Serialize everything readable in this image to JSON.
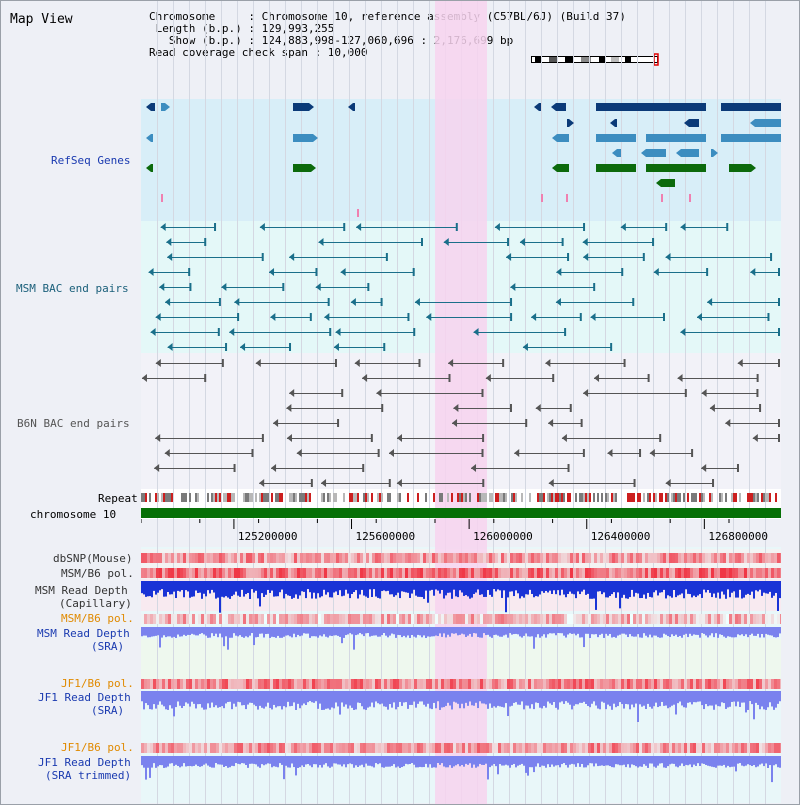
{
  "view": {
    "title": "Map View"
  },
  "header": {
    "line1": "Chromosome     : Chromosome 10, reference assembly (C57BL/6J) (Build 37)",
    "line2": " Length (b.p.) : 129,993,255",
    "line3": "   Show (b.p.) : 124,883,998-127,060,696 : 2,176,699 bp",
    "line4": "Read coverage check span : 10,000"
  },
  "colors": {
    "gene_navy": "#0b3a78",
    "gene_mid": "#3c8dc0",
    "gene_green": "#0c6a0c",
    "refseq_bg": "#d8eef8",
    "msm_bg": "#e4f8f8",
    "b6n_bg": "#f2f2f8",
    "msm_line": "#1a6f8a",
    "b6n_line": "#555555",
    "highlight": "#f7d3ee",
    "chrom_bar": "#067006",
    "depth_blue": "#1a33d6",
    "depth_light": "#7a82ee",
    "snp_red": "#e84a50",
    "label_blue": "#1a3ab0",
    "label_orange": "#e08a00",
    "label_teal": "#1a5f7a"
  },
  "tracks": {
    "refseq": "RefSeq Genes",
    "msm_bac": "MSM BAC end pairs",
    "b6n_bac": "B6N BAC end pairs",
    "repeat": "Repeat",
    "chromosome": "chromosome 10",
    "dbsnp": "dbSNP(Mouse)",
    "msm_b6_pol": "MSM/B6 pol.",
    "msm_depth_cap": "MSM Read Depth",
    "msm_depth_cap_sub": "(Capillary)",
    "msm_b6_pol2": "MSM/B6 pol.",
    "msm_depth_sra": "MSM Read Depth",
    "msm_depth_sra_sub": "(SRA)",
    "jf1_b6_pol": "JF1/B6 pol.",
    "jf1_depth_sra": "JF1 Read Depth",
    "jf1_depth_sra_sub": "(SRA)",
    "jf1_b6_pol2": "JF1/B6 pol.",
    "jf1_depth_trim": "JF1 Read Depth",
    "jf1_depth_trim_sub": "(SRA trimmed)"
  },
  "axis": {
    "ticks": [
      "125200000",
      "125600000",
      "126000000",
      "126400000",
      "126800000"
    ],
    "values": [
      125200000,
      125600000,
      126000000,
      126400000,
      126800000
    ],
    "range": [
      124883998,
      127060696
    ]
  },
  "highlight_region": [
    125883998,
    126060696
  ]
}
